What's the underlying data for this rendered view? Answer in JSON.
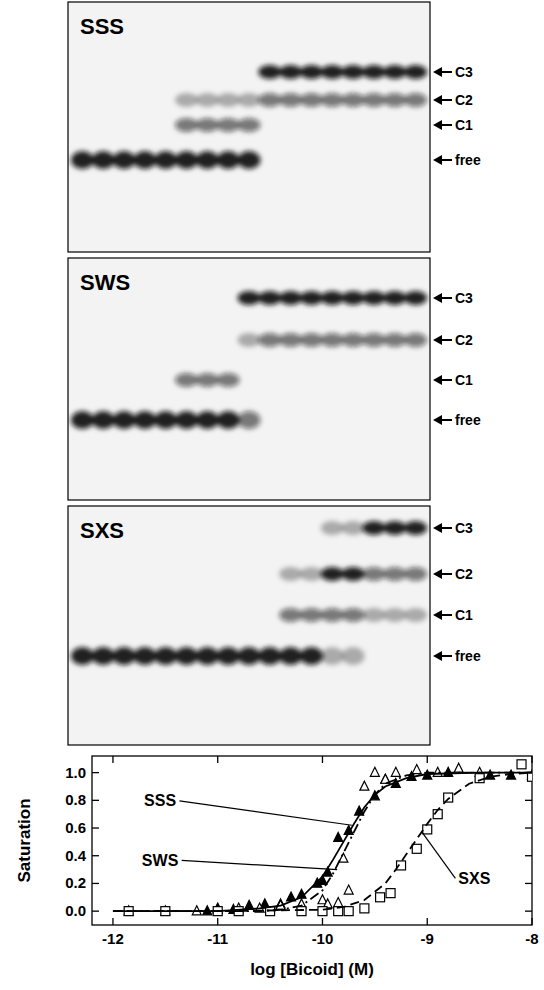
{
  "gels": [
    {
      "title": "SSS",
      "band_labels": [
        "C3",
        "C2",
        "C1",
        "free"
      ],
      "lanes": [
        [
          "free"
        ],
        [
          "free"
        ],
        [
          "free"
        ],
        [
          "free"
        ],
        [
          "free"
        ],
        [
          "free",
          "C1",
          "C2"
        ],
        [
          "free",
          "C1",
          "C2"
        ],
        [
          "free",
          "C1",
          "C2"
        ],
        [
          "free",
          "C1",
          "C2"
        ],
        [
          "C3",
          "C2"
        ],
        [
          "C3",
          "C2"
        ],
        [
          "C3",
          "C2"
        ],
        [
          "C3",
          "C2"
        ],
        [
          "C3",
          "C2"
        ],
        [
          "C3",
          "C2"
        ],
        [
          "C3",
          "C2"
        ],
        [
          "C3",
          "C2"
        ]
      ]
    },
    {
      "title": "SWS",
      "band_labels": [
        "C3",
        "C2",
        "C1",
        "free"
      ],
      "lanes": [
        [
          "free"
        ],
        [
          "free"
        ],
        [
          "free"
        ],
        [
          "free"
        ],
        [
          "free"
        ],
        [
          "free",
          "C1"
        ],
        [
          "free",
          "C1"
        ],
        [
          "free",
          "C1"
        ],
        [
          "C3",
          "free",
          "C2"
        ],
        [
          "C3",
          "C2"
        ],
        [
          "C3",
          "C2"
        ],
        [
          "C3",
          "C2"
        ],
        [
          "C3",
          "C2"
        ],
        [
          "C3",
          "C2"
        ],
        [
          "C3",
          "C2"
        ],
        [
          "C3",
          "C2"
        ],
        [
          "C3",
          "C2"
        ]
      ]
    },
    {
      "title": "SXS",
      "band_labels": [
        "C3",
        "C2",
        "C1",
        "free"
      ],
      "lanes": [
        [
          "free"
        ],
        [
          "free"
        ],
        [
          "free"
        ],
        [
          "free"
        ],
        [
          "free"
        ],
        [
          "free"
        ],
        [
          "free"
        ],
        [
          "free"
        ],
        [
          "free"
        ],
        [
          "free"
        ],
        [
          "free",
          "C1",
          "C2"
        ],
        [
          "free",
          "C1",
          "C2"
        ],
        [
          "C2",
          "C1",
          "C3",
          "free"
        ],
        [
          "C2",
          "C1",
          "C3",
          "free"
        ],
        [
          "C3",
          "C2",
          "C1"
        ],
        [
          "C3",
          "C2",
          "C1"
        ],
        [
          "C3",
          "C2",
          "C1"
        ]
      ]
    }
  ],
  "chart_data": {
    "type": "scatter",
    "x_label": "log [Bicoid] (M)",
    "y_label": "Saturation",
    "xlim": [
      -12.2,
      -8
    ],
    "ylim": [
      -0.1,
      1.12
    ],
    "xticks": [
      -12,
      -11,
      -10,
      -9,
      -8
    ],
    "yticks": [
      {
        "value": 0,
        "label": "0.0"
      },
      {
        "value": 0.2,
        "label": "0.2"
      },
      {
        "value": 0.4,
        "label": "0.4"
      },
      {
        "value": 0.6,
        "label": "0.6"
      },
      {
        "value": 0.8,
        "label": "0.8"
      },
      {
        "value": 1,
        "label": "1.0"
      }
    ],
    "series": [
      {
        "type": "scatter",
        "marker": "triangle",
        "color": "#000000",
        "x": [
          -11.85,
          -11.5,
          -11.1,
          -11.0,
          -10.85,
          -10.7,
          -10.55,
          -10.4,
          -10.3,
          -10.2,
          -10.05,
          -10.0,
          -9.95,
          -9.85,
          -9.75,
          -9.65,
          -9.5,
          -9.4,
          -9.3,
          -9.15,
          -9.0,
          -8.8,
          -8.4,
          -8.2,
          -8.0
        ],
        "values": [
          0,
          0,
          0,
          0.02,
          0.01,
          0.04,
          0.05,
          0.05,
          0.1,
          0.12,
          0.2,
          0.22,
          0.28,
          0.53,
          0.58,
          0.72,
          0.83,
          0.95,
          0.92,
          0.97,
          0.98,
          1.0,
          0.98,
          0.98,
          0.98
        ]
      },
      {
        "type": "scatter",
        "marker": "triangle-open",
        "color": "#000000",
        "x": [
          -11.2,
          -11.0,
          -10.8,
          -10.6,
          -10.4,
          -10.2,
          -10.0,
          -9.95,
          -9.85,
          -9.8,
          -9.75,
          -9.6,
          -9.5,
          -9.4,
          -9.3,
          -9.1,
          -8.9,
          -8.7,
          -8.5
        ],
        "values": [
          0,
          0.01,
          0.02,
          0.02,
          0.04,
          0.05,
          0.08,
          0.05,
          0.06,
          0.38,
          0.15,
          0.9,
          1.0,
          0.95,
          1.0,
          1.02,
          1.0,
          1.03,
          1.0
        ]
      },
      {
        "type": "scatter",
        "marker": "square-open",
        "color": "#000000",
        "x": [
          -11.85,
          -11.5,
          -11.0,
          -10.8,
          -10.5,
          -10.2,
          -10.0,
          -9.85,
          -9.75,
          -9.6,
          -9.45,
          -9.35,
          -9.25,
          -9.1,
          -9.0,
          -8.9,
          -8.8,
          -8.5,
          -8.1,
          -8.0
        ],
        "values": [
          0,
          0,
          0,
          0,
          0,
          0,
          0,
          0,
          0,
          0.02,
          0.1,
          0.13,
          0.33,
          0.45,
          0.59,
          0.7,
          0.82,
          0.96,
          1.06,
          0.97
        ]
      },
      {
        "type": "line",
        "line_style": "solid",
        "color": "#000000",
        "x": [
          -12,
          -11,
          -10.6,
          -10.4,
          -10.2,
          -10.0,
          -9.9,
          -9.8,
          -9.7,
          -9.6,
          -9.5,
          -9.4,
          -9.2,
          -9.0,
          -8.5,
          -8.0
        ],
        "values": [
          0,
          0,
          0.02,
          0.04,
          0.1,
          0.25,
          0.37,
          0.5,
          0.63,
          0.75,
          0.84,
          0.9,
          0.96,
          0.99,
          1.0,
          1.0
        ]
      },
      {
        "type": "line",
        "line_style": "dashdot",
        "color": "#000000",
        "x": [
          -12,
          -11,
          -10.6,
          -10.4,
          -10.2,
          -10.0,
          -9.9,
          -9.8,
          -9.7,
          -9.6,
          -9.5,
          -9.4,
          -9.2,
          -9.0,
          -8.5,
          -8.0
        ],
        "values": [
          0,
          0,
          0.0,
          0.01,
          0.04,
          0.15,
          0.27,
          0.42,
          0.57,
          0.72,
          0.84,
          0.92,
          0.98,
          1.0,
          1.0,
          1.0
        ]
      },
      {
        "type": "line",
        "line_style": "dashed",
        "color": "#000000",
        "x": [
          -12,
          -11,
          -10.0,
          -9.8,
          -9.6,
          -9.4,
          -9.3,
          -9.2,
          -9.1,
          -9.0,
          -8.9,
          -8.8,
          -8.6,
          -8.4,
          -8.2,
          -8.0
        ],
        "values": [
          0,
          0,
          0.01,
          0.03,
          0.08,
          0.2,
          0.3,
          0.41,
          0.52,
          0.63,
          0.73,
          0.81,
          0.92,
          0.97,
          0.99,
          1.0
        ]
      }
    ],
    "annotations": [
      {
        "text": "SSS",
        "x": -11.55,
        "y": 0.8,
        "arrow_to": [
          -9.72,
          0.62
        ]
      },
      {
        "text": "SWS",
        "x": -11.55,
        "y": 0.37,
        "arrow_to": [
          -9.86,
          0.3
        ]
      },
      {
        "text": "SXS",
        "x": -8.55,
        "y": 0.24,
        "arrow_to": [
          -9.05,
          0.57
        ]
      }
    ]
  }
}
